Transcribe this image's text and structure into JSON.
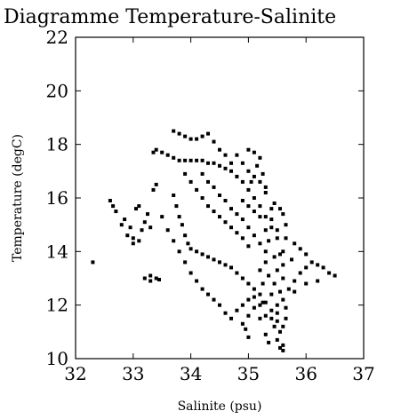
{
  "chart_data": {
    "type": "scatter",
    "title": "Diagramme Temperature-Salinite",
    "xlabel": "Salinite (psu)",
    "ylabel": "Temperature (degC)",
    "xlim": [
      32,
      37
    ],
    "ylim": [
      10,
      22
    ],
    "xticks": [
      "32",
      "33",
      "34",
      "35",
      "36",
      "37"
    ],
    "yticks": [
      "10",
      "12",
      "14",
      "16",
      "18",
      "20",
      "22"
    ],
    "grid": false,
    "marker_color": "#000000",
    "series": [
      {
        "points": [
          [
            32.3,
            13.6
          ],
          [
            32.6,
            15.9
          ],
          [
            32.65,
            15.7
          ],
          [
            32.7,
            15.5
          ],
          [
            32.8,
            15.0
          ],
          [
            32.85,
            15.2
          ],
          [
            32.9,
            14.6
          ],
          [
            32.95,
            14.9
          ],
          [
            33.0,
            14.3
          ],
          [
            33.0,
            14.5
          ],
          [
            33.05,
            15.6
          ],
          [
            33.1,
            15.7
          ],
          [
            33.1,
            14.4
          ],
          [
            33.15,
            14.8
          ],
          [
            33.2,
            15.1
          ],
          [
            33.25,
            15.4
          ],
          [
            33.3,
            14.9
          ],
          [
            33.35,
            16.3
          ],
          [
            33.4,
            16.5
          ],
          [
            33.35,
            17.7
          ],
          [
            33.4,
            17.8
          ],
          [
            33.5,
            17.7
          ],
          [
            33.6,
            17.6
          ],
          [
            33.7,
            17.5
          ],
          [
            33.8,
            17.4
          ],
          [
            33.9,
            17.4
          ],
          [
            34.0,
            17.4
          ],
          [
            34.1,
            17.4
          ],
          [
            34.2,
            17.4
          ],
          [
            34.3,
            17.3
          ],
          [
            34.4,
            17.3
          ],
          [
            34.5,
            17.2
          ],
          [
            34.6,
            17.1
          ],
          [
            34.7,
            17.0
          ],
          [
            34.8,
            16.8
          ],
          [
            34.9,
            16.6
          ],
          [
            35.0,
            16.3
          ],
          [
            35.1,
            16.0
          ],
          [
            35.2,
            15.7
          ],
          [
            35.3,
            15.3
          ],
          [
            35.4,
            14.9
          ],
          [
            35.5,
            14.5
          ],
          [
            33.7,
            18.5
          ],
          [
            33.8,
            18.4
          ],
          [
            33.9,
            18.3
          ],
          [
            34.0,
            18.2
          ],
          [
            34.1,
            18.2
          ],
          [
            34.2,
            18.3
          ],
          [
            34.3,
            18.4
          ],
          [
            34.4,
            18.1
          ],
          [
            34.5,
            17.8
          ],
          [
            34.6,
            17.6
          ],
          [
            34.7,
            17.3
          ],
          [
            34.8,
            17.6
          ],
          [
            34.9,
            17.3
          ],
          [
            35.0,
            17.0
          ],
          [
            35.1,
            16.8
          ],
          [
            35.2,
            16.6
          ],
          [
            35.3,
            16.2
          ],
          [
            35.05,
            16.6
          ],
          [
            33.7,
            16.1
          ],
          [
            33.75,
            15.7
          ],
          [
            33.8,
            15.3
          ],
          [
            33.85,
            15.0
          ],
          [
            33.9,
            14.6
          ],
          [
            33.95,
            14.3
          ],
          [
            34.0,
            14.1
          ],
          [
            34.1,
            14.0
          ],
          [
            34.2,
            13.9
          ],
          [
            34.3,
            13.8
          ],
          [
            34.4,
            13.7
          ],
          [
            34.5,
            13.6
          ],
          [
            34.6,
            13.5
          ],
          [
            34.7,
            13.4
          ],
          [
            34.8,
            13.2
          ],
          [
            34.9,
            13.0
          ],
          [
            35.0,
            12.8
          ],
          [
            35.1,
            12.6
          ],
          [
            35.2,
            12.4
          ],
          [
            35.3,
            12.1
          ],
          [
            35.4,
            11.8
          ],
          [
            35.5,
            11.4
          ],
          [
            35.55,
            11.0
          ],
          [
            35.6,
            10.5
          ],
          [
            33.5,
            15.3
          ],
          [
            33.6,
            14.8
          ],
          [
            33.7,
            14.4
          ],
          [
            33.8,
            14.0
          ],
          [
            33.9,
            13.6
          ],
          [
            34.0,
            13.2
          ],
          [
            34.1,
            12.9
          ],
          [
            34.2,
            12.6
          ],
          [
            34.3,
            12.4
          ],
          [
            34.4,
            12.2
          ],
          [
            34.5,
            12.0
          ],
          [
            34.6,
            11.7
          ],
          [
            33.2,
            13.0
          ],
          [
            33.3,
            12.9
          ],
          [
            33.4,
            13.0
          ],
          [
            33.3,
            13.1
          ],
          [
            33.45,
            12.95
          ],
          [
            33.9,
            16.9
          ],
          [
            34.0,
            16.6
          ],
          [
            34.1,
            16.3
          ],
          [
            34.2,
            16.0
          ],
          [
            34.3,
            15.7
          ],
          [
            34.4,
            15.5
          ],
          [
            34.5,
            15.3
          ],
          [
            34.6,
            15.1
          ],
          [
            34.7,
            14.9
          ],
          [
            34.8,
            14.7
          ],
          [
            34.9,
            14.5
          ],
          [
            35.0,
            14.2
          ],
          [
            34.2,
            16.9
          ],
          [
            34.3,
            16.6
          ],
          [
            34.4,
            16.4
          ],
          [
            34.5,
            16.1
          ],
          [
            34.6,
            15.9
          ],
          [
            34.7,
            15.6
          ],
          [
            34.8,
            15.4
          ],
          [
            34.9,
            15.2
          ],
          [
            35.0,
            14.9
          ],
          [
            35.1,
            14.6
          ],
          [
            35.2,
            14.3
          ],
          [
            35.3,
            14.0
          ],
          [
            34.95,
            11.1
          ],
          [
            35.0,
            11.6
          ],
          [
            35.0,
            10.8
          ],
          [
            34.9,
            11.3
          ],
          [
            35.1,
            11.9
          ],
          [
            35.2,
            11.5
          ],
          [
            35.3,
            10.9
          ],
          [
            35.35,
            10.6
          ],
          [
            35.45,
            11.2
          ],
          [
            35.5,
            10.7
          ],
          [
            35.6,
            10.3
          ],
          [
            35.55,
            10.4
          ],
          [
            35.5,
            12.0
          ],
          [
            35.55,
            12.5
          ],
          [
            35.6,
            13.0
          ],
          [
            35.6,
            13.5
          ],
          [
            35.6,
            14.0
          ],
          [
            35.65,
            14.5
          ],
          [
            35.65,
            15.0
          ],
          [
            35.6,
            15.4
          ],
          [
            35.55,
            15.6
          ],
          [
            35.45,
            15.8
          ],
          [
            35.4,
            15.2
          ],
          [
            35.45,
            13.8
          ],
          [
            35.5,
            13.3
          ],
          [
            35.45,
            12.8
          ],
          [
            35.4,
            12.4
          ],
          [
            35.35,
            13.1
          ],
          [
            35.3,
            13.6
          ],
          [
            35.25,
            12.8
          ],
          [
            35.2,
            13.3
          ],
          [
            35.35,
            14.4
          ],
          [
            35.5,
            14.8
          ],
          [
            35.55,
            13.9
          ],
          [
            35.6,
            12.2
          ],
          [
            35.65,
            11.5
          ],
          [
            35.65,
            11.9
          ],
          [
            35.6,
            11.2
          ],
          [
            35.5,
            11.7
          ],
          [
            35.4,
            11.5
          ],
          [
            35.3,
            11.6
          ],
          [
            35.25,
            12.1
          ],
          [
            35.7,
            12.6
          ],
          [
            35.8,
            12.9
          ],
          [
            35.9,
            13.2
          ],
          [
            36.0,
            13.4
          ],
          [
            36.1,
            13.6
          ],
          [
            36.2,
            13.5
          ],
          [
            36.3,
            13.4
          ],
          [
            36.4,
            13.2
          ],
          [
            36.5,
            13.1
          ],
          [
            36.2,
            12.9
          ],
          [
            36.0,
            12.8
          ],
          [
            35.8,
            12.5
          ],
          [
            35.9,
            14.1
          ],
          [
            36.0,
            13.9
          ],
          [
            35.8,
            14.3
          ],
          [
            35.75,
            13.7
          ],
          [
            35.0,
            12.2
          ],
          [
            34.9,
            12.0
          ],
          [
            34.8,
            11.8
          ],
          [
            34.7,
            11.5
          ],
          [
            35.1,
            12.3
          ],
          [
            35.2,
            12.0
          ],
          [
            35.3,
            14.8
          ],
          [
            35.2,
            15.3
          ],
          [
            35.1,
            15.5
          ],
          [
            35.0,
            15.7
          ],
          [
            34.9,
            15.9
          ],
          [
            35.4,
            15.6
          ],
          [
            35.15,
            17.2
          ],
          [
            35.25,
            16.9
          ],
          [
            35.3,
            16.4
          ],
          [
            35.2,
            17.5
          ],
          [
            35.1,
            17.7
          ],
          [
            35.0,
            17.8
          ]
        ]
      }
    ]
  }
}
